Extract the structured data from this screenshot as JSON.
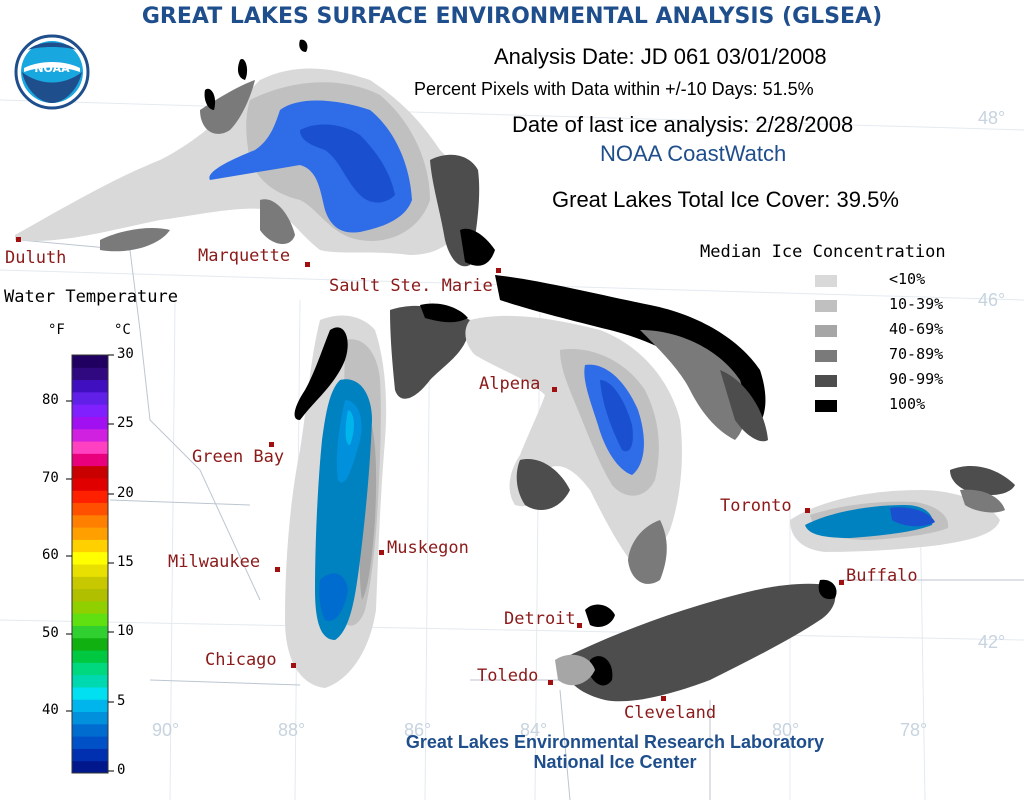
{
  "title": "GREAT LAKES SURFACE ENVIRONMENTAL ANALYSIS (GLSEA)",
  "analysis_date": "Analysis Date:  JD 061 03/01/2008",
  "percent_pixels": "Percent Pixels with Data within +/-10 Days:  51.5%",
  "last_ice": "Date of last ice analysis: 2/28/2008",
  "source": "NOAA CoastWatch",
  "total_ice": "Great Lakes Total Ice Cover:  39.5%",
  "logo_text": "NOAA",
  "ice_legend": {
    "title": "Median Ice Concentration",
    "items": [
      {
        "label": "<10%",
        "color": "#d9d9d9"
      },
      {
        "label": "10-39%",
        "color": "#c0c0c0"
      },
      {
        "label": "40-69%",
        "color": "#a6a6a6"
      },
      {
        "label": "70-89%",
        "color": "#7a7a7a"
      },
      {
        "label": "90-99%",
        "color": "#4d4d4d"
      },
      {
        "label": "100%",
        "color": "#000000"
      }
    ]
  },
  "temp_legend": {
    "title": "Water Temperature",
    "unit_f": "°F",
    "unit_c": "°C",
    "f_ticks": [
      "80",
      "70",
      "60",
      "50",
      "40"
    ],
    "c_ticks": [
      "30",
      "25",
      "20",
      "15",
      "10",
      "5",
      "0"
    ],
    "colors": [
      "#00188c",
      "#0030b0",
      "#0050c8",
      "#006cd0",
      "#0090dc",
      "#00b4ec",
      "#00e0f0",
      "#00d8b0",
      "#00d880",
      "#00c840",
      "#10b010",
      "#30d030",
      "#60e010",
      "#90d000",
      "#b0c000",
      "#c8c800",
      "#e8e000",
      "#ffff00",
      "#ffd000",
      "#ffa000",
      "#ff8000",
      "#ff5000",
      "#ff2000",
      "#e00000",
      "#c80000",
      "#e8007c",
      "#ff40c0",
      "#d020e0",
      "#a010f0",
      "#8020ff",
      "#6020e8",
      "#4010c0",
      "#300880",
      "#200060"
    ]
  },
  "cities": [
    {
      "name": "Duluth"
    },
    {
      "name": "Marquette"
    },
    {
      "name": "Sault Ste. Marie"
    },
    {
      "name": "Green Bay"
    },
    {
      "name": "Alpena"
    },
    {
      "name": "Milwaukee"
    },
    {
      "name": "Muskegon"
    },
    {
      "name": "Chicago"
    },
    {
      "name": "Detroit"
    },
    {
      "name": "Toledo"
    },
    {
      "name": "Cleveland"
    },
    {
      "name": "Toronto"
    },
    {
      "name": "Buffalo"
    }
  ],
  "graticule": {
    "lat_48": "48°",
    "lat_46": "46°",
    "lat_42": "42°",
    "lon_90": "90°",
    "lon_88": "88°",
    "lon_86": "86°",
    "lon_84": "84°",
    "lon_80": "80°",
    "lon_78": "78°"
  },
  "credits": {
    "line1": "Great Lakes Environmental Research Laboratory",
    "line2": "National Ice Center"
  }
}
